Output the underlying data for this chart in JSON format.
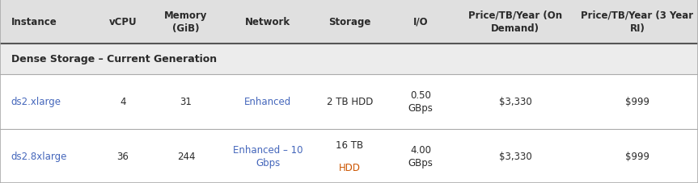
{
  "headers": [
    "Instance",
    "vCPU",
    "Memory\n(GiB)",
    "Network",
    "Storage",
    "I/O",
    "Price/TB/Year (On\nDemand)",
    "Price/TB/Year (3 Year\nRI)"
  ],
  "section_row": "Dense Storage – Current Generation",
  "rows": [
    {
      "instance": "ds2.xlarge",
      "vcpu": "4",
      "memory": "31",
      "network": "Enhanced",
      "storage": "2 TB HDD",
      "io": "0.50\nGBps",
      "price_od": "$3,330",
      "price_ri": "$999"
    },
    {
      "instance": "ds2.8xlarge",
      "vcpu": "36",
      "memory": "244",
      "network": "Enhanced – 10\nGbps",
      "storage_line1": "16 TB",
      "storage_line2": "HDD",
      "io": "4.00\nGBps",
      "price_od": "$3,330",
      "price_ri": "$999"
    }
  ],
  "header_bg": "#e0e0e0",
  "section_bg": "#ececec",
  "row_bg": "#ffffff",
  "border_color": "#aaaaaa",
  "border_color_heavy": "#555555",
  "text_color_black": "#2a2a2a",
  "text_color_blue": "#4466bb",
  "text_color_orange": "#cc5500",
  "header_fontsize": 8.5,
  "cell_fontsize": 8.5,
  "section_fontsize": 9,
  "fig_w": 8.63,
  "fig_h": 2.28,
  "dpi": 100
}
